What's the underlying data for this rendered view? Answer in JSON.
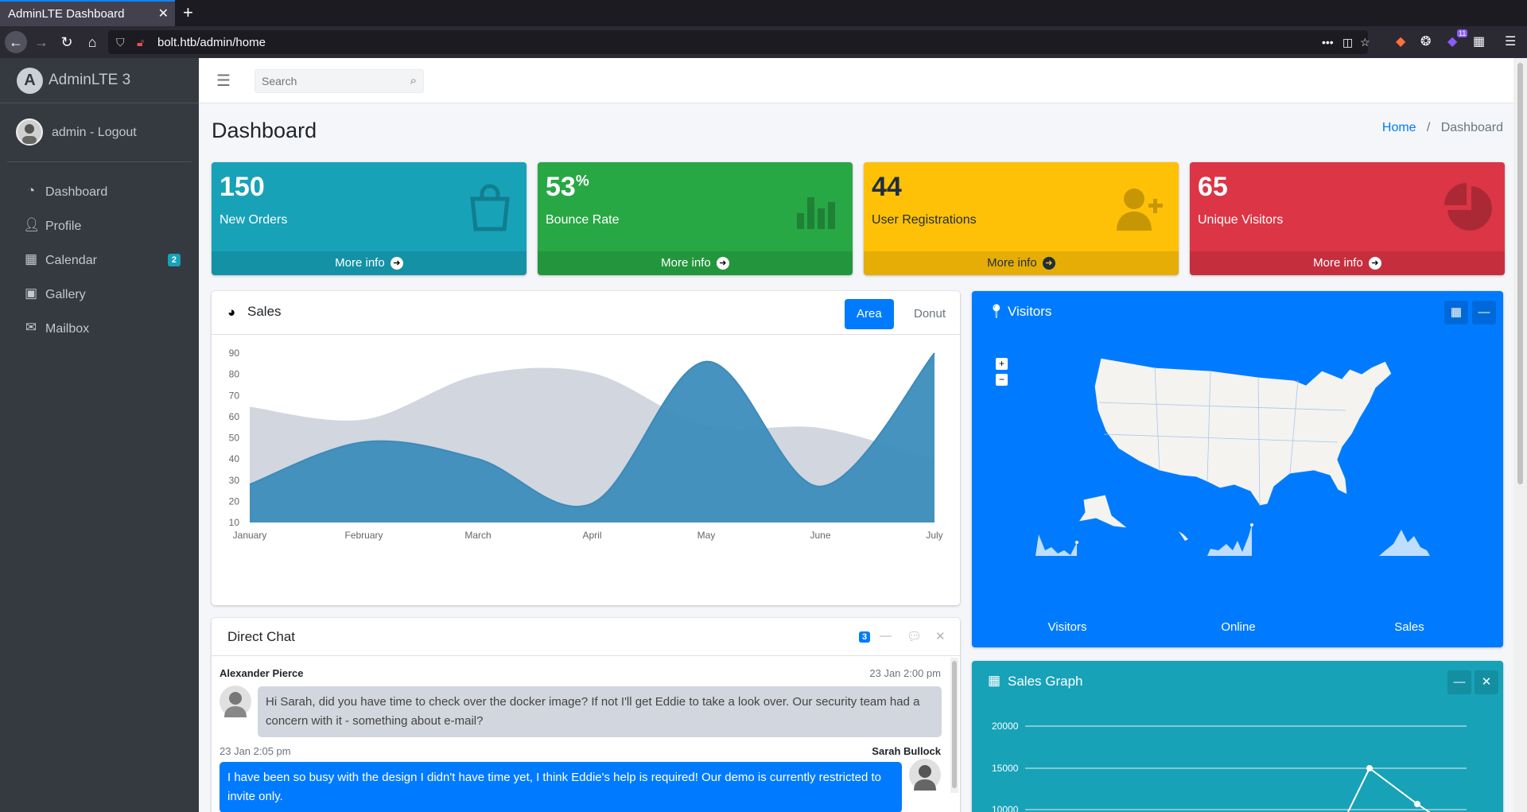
{
  "browser": {
    "tab_title": "AdminLTE Dashboard",
    "url": "bolt.htb/admin/home",
    "extension_badge": "11"
  },
  "sidebar": {
    "brand": "AdminLTE 3",
    "user": "admin - Logout",
    "items": [
      {
        "label": "Dashboard",
        "icon": "tachometer-icon"
      },
      {
        "label": "Profile",
        "icon": "user-icon"
      },
      {
        "label": "Calendar",
        "icon": "calendar-icon",
        "badge": "2"
      },
      {
        "label": "Gallery",
        "icon": "image-icon"
      },
      {
        "label": "Mailbox",
        "icon": "envelope-icon"
      }
    ]
  },
  "header": {
    "search_placeholder": "Search"
  },
  "page": {
    "title": "Dashboard",
    "breadcrumb": [
      "Home",
      "Dashboard"
    ]
  },
  "stats": [
    {
      "value": "150",
      "suffix": "",
      "label": "New Orders",
      "footer": "More info",
      "color": "#17a2b8",
      "icon": "shopping-bag-icon"
    },
    {
      "value": "53",
      "suffix": "%",
      "label": "Bounce Rate",
      "footer": "More info",
      "color": "#28a745",
      "icon": "bar-chart-icon"
    },
    {
      "value": "44",
      "suffix": "",
      "label": "User Registrations",
      "footer": "More info",
      "color": "#ffc107",
      "icon": "user-plus-icon"
    },
    {
      "value": "65",
      "suffix": "",
      "label": "Unique Visitors",
      "footer": "More info",
      "color": "#dc3545",
      "icon": "pie-chart-icon"
    }
  ],
  "sales": {
    "title": "Sales",
    "tabs": [
      "Area",
      "Donut"
    ]
  },
  "visitors": {
    "title": "Visitors",
    "sparklines": [
      "Visitors",
      "Online",
      "Sales"
    ]
  },
  "sales_graph": {
    "title": "Sales Graph",
    "y_ticks": [
      "20000",
      "15000",
      "10000"
    ]
  },
  "chat": {
    "title": "Direct Chat",
    "badge": "3",
    "messages": [
      {
        "name": "Alexander Pierce",
        "time": "23 Jan 2:00 pm",
        "text": "Hi Sarah, did you have time to check over the docker image? If not I'll get Eddie to take a look over. Our security team had a concern with it - something about e-mail?"
      },
      {
        "name": "Sarah Bullock",
        "time": "23 Jan 2:05 pm",
        "text": "I have been so busy with the design I didn't have time yet, I think Eddie's help is required! Our demo is currently restricted to invite only."
      }
    ]
  },
  "chart_data": [
    {
      "type": "area",
      "categories": [
        "January",
        "February",
        "March",
        "April",
        "May",
        "June",
        "July"
      ],
      "ylim": [
        10,
        90
      ],
      "y_ticks": [
        10,
        20,
        30,
        40,
        50,
        60,
        70,
        80,
        90
      ],
      "series": [
        {
          "values": [
            65,
            59,
            80,
            81,
            56,
            55,
            40
          ],
          "color": "#d2d6de"
        },
        {
          "values": [
            28,
            48,
            40,
            19,
            86,
            27,
            90
          ],
          "color": "#3c8dbc"
        }
      ]
    }
  ]
}
